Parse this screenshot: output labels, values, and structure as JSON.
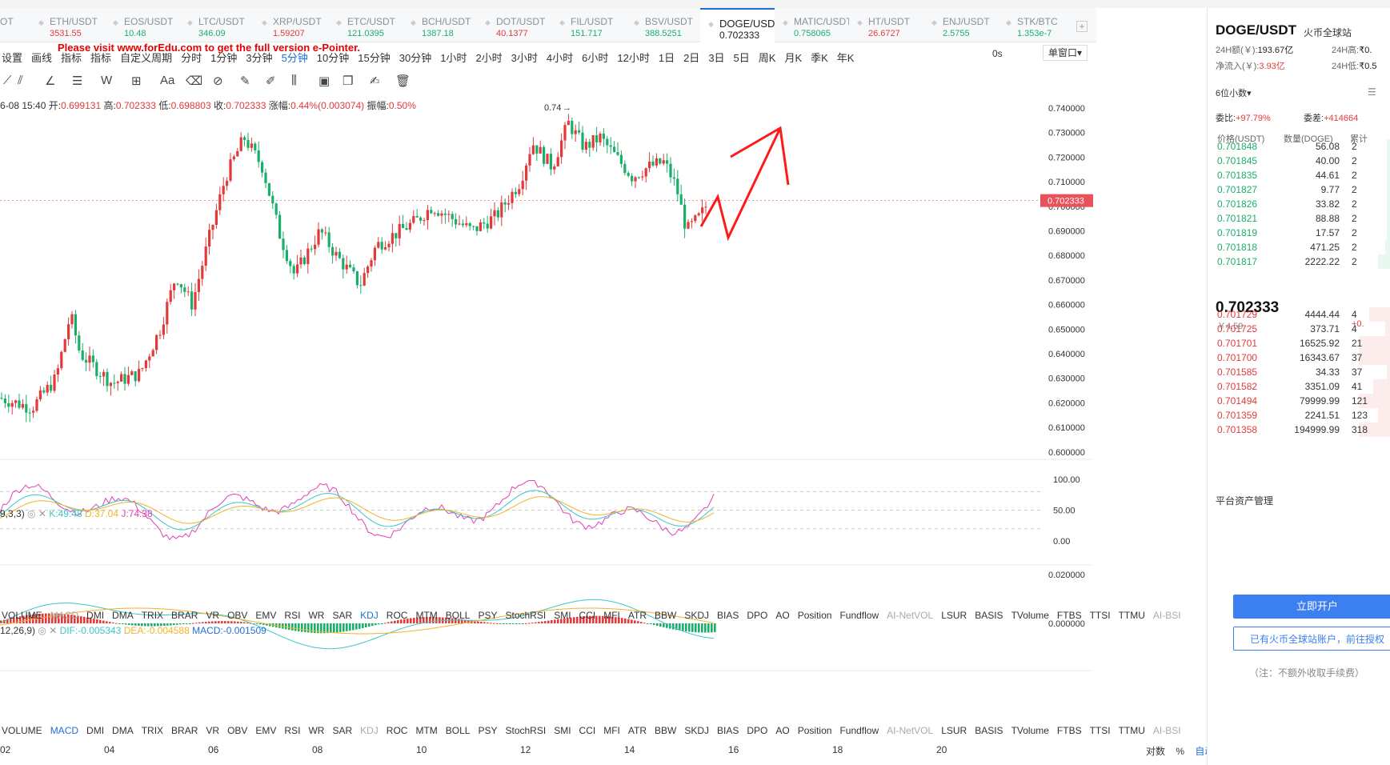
{
  "tabs": [
    {
      "name": "OT",
      "price": "",
      "color": "#e23a3a"
    },
    {
      "name": "ETH/USDT",
      "price": "3531.55",
      "color": "#e23a3a"
    },
    {
      "name": "EOS/USDT",
      "price": "10.48",
      "color": "#1bae6b"
    },
    {
      "name": "LTC/USDT",
      "price": "346.09",
      "color": "#1bae6b"
    },
    {
      "name": "XRP/USDT",
      "price": "1.59207",
      "color": "#e23a3a"
    },
    {
      "name": "ETC/USDT",
      "price": "121.0395",
      "color": "#1bae6b"
    },
    {
      "name": "BCH/USDT",
      "price": "1387.18",
      "color": "#1bae6b"
    },
    {
      "name": "DOT/USDT",
      "price": "40.1377",
      "color": "#e23a3a"
    },
    {
      "name": "FIL/USDT",
      "price": "151.717",
      "color": "#1bae6b"
    },
    {
      "name": "BSV/USDT",
      "price": "388.5251",
      "color": "#1bae6b"
    },
    {
      "name": "DOGE/USDT",
      "price": "0.702333",
      "color": "#222222",
      "active": true
    },
    {
      "name": "MATIC/USDT",
      "price": "0.758065",
      "color": "#1bae6b"
    },
    {
      "name": "HT/USDT",
      "price": "26.6727",
      "color": "#e23a3a"
    },
    {
      "name": "ENJ/USDT",
      "price": "2.5755",
      "color": "#1bae6b"
    },
    {
      "name": "STK/BTC",
      "price": "1.353e-7",
      "color": "#1bae6b"
    }
  ],
  "add_tab": "+",
  "watermark": "Please visit www.forEdu.com to get the full version e-Pointer.",
  "toolbar": [
    "设置",
    "画线",
    "指标",
    "指标",
    "自定义周期",
    "分时",
    "1分钟",
    "3分钟",
    "5分钟",
    "10分钟",
    "15分钟",
    "30分钟",
    "1小时",
    "2小时",
    "3小时",
    "4小时",
    "6小时",
    "12小时",
    "1日",
    "2日",
    "3日",
    "5日",
    "周K",
    "月K",
    "季K",
    "年K"
  ],
  "toolbar_active": "5分钟",
  "toolbar_right": {
    "countdown": "0s",
    "window": "单窗口"
  },
  "ohlc": {
    "time": "6-08 15:40",
    "open_label": "开:",
    "open": "0.699131",
    "high_label": "高:",
    "high": "0.702333",
    "low_label": "低:",
    "low": "0.698803",
    "close_label": "收:",
    "close": "0.702333",
    "chg_label": "涨幅:",
    "chg": "0.44%(0.003074)",
    "amp_label": "振幅:",
    "amp": "0.50%"
  },
  "price_axis": [
    "0.740000",
    "0.730000",
    "0.720000",
    "0.710000",
    "0.700000",
    "0.690000",
    "0.680000",
    "0.670000",
    "0.660000",
    "0.650000",
    "0.640000",
    "0.630000",
    "0.620000",
    "0.610000",
    "0.600000"
  ],
  "current_price_tag": "0.702333",
  "peak_label": "0.74",
  "kdj": {
    "params": "9,3,3)",
    "k_label": "K:",
    "k": "49.48",
    "d_label": "D:",
    "d": "37.04",
    "j_label": "J:",
    "j": "74.38",
    "axis": [
      "100.00",
      "50.00",
      "0.00"
    ]
  },
  "macd": {
    "params": "12,26,9)",
    "dif_label": "DIF:",
    "dif": "-0.005343",
    "dea_label": "DEA:",
    "dea": "-0.004588",
    "macd_label": "MACD:",
    "macd": "-0.001509",
    "axis": [
      "0.020000",
      "0.000000"
    ]
  },
  "indicators": [
    "VOLUME",
    "MACD",
    "DMI",
    "DMA",
    "TRIX",
    "BRAR",
    "VR",
    "OBV",
    "EMV",
    "RSI",
    "WR",
    "SAR",
    "KDJ",
    "ROC",
    "MTM",
    "BOLL",
    "PSY",
    "StochRSI",
    "SMI",
    "CCI",
    "MFI",
    "ATR",
    "BBW",
    "SKDJ",
    "BIAS",
    "DPO",
    "AO",
    "Position",
    "Fundflow",
    "AI-NetVOL",
    "LSUR",
    "BASIS",
    "TVolume",
    "FTBS",
    "TTSI",
    "TTMU",
    "AI-BSI"
  ],
  "x_axis": [
    "02",
    "04",
    "06",
    "08",
    "10",
    "12",
    "14",
    "16",
    "18",
    "20"
  ],
  "bottom_right": {
    "pair": "对数",
    "pct": "%",
    "auto": "自动"
  },
  "colors": {
    "up": "#e23a3a",
    "down": "#1bae6b",
    "accent": "#1e6fd6",
    "k": "#3cc6c6",
    "d": "#f3b22a",
    "j": "#e040b8",
    "dif": "#3cc6c6",
    "dea": "#f3b22a"
  },
  "right_panel": {
    "symbol": "DOGE/USDT",
    "exchange": "火币全球站",
    "vol24_label": "24H额(￥):",
    "vol24": "193.67亿",
    "high24_label": "24H高:",
    "high24": "₹0.",
    "inflow_label": "净流入(￥):",
    "inflow": "3.93亿",
    "low24_label": "24H低:",
    "low24": "₹0.5",
    "decimals": "6位小数",
    "ratio_label": "委比:",
    "ratio": "+97.79%",
    "diff_label": "委差:",
    "diff": "+414664",
    "col_price": "价格(USDT)",
    "col_qty": "数量(DOGE)",
    "col_cum": "累计",
    "bids": [
      {
        "p": "0.701848",
        "q": "56.08",
        "c": "2"
      },
      {
        "p": "0.701845",
        "q": "40.00",
        "c": "2"
      },
      {
        "p": "0.701835",
        "q": "44.61",
        "c": "2"
      },
      {
        "p": "0.701827",
        "q": "9.77",
        "c": "2"
      },
      {
        "p": "0.701826",
        "q": "33.82",
        "c": "2"
      },
      {
        "p": "0.701821",
        "q": "88.88",
        "c": "2"
      },
      {
        "p": "0.701819",
        "q": "17.57",
        "c": "2"
      },
      {
        "p": "0.701818",
        "q": "471.25",
        "c": "2"
      },
      {
        "p": "0.701817",
        "q": "2222.22",
        "c": "2"
      }
    ],
    "last": "0.702333",
    "last_cny": "￥4.59",
    "last_chg": "+0.",
    "asks": [
      {
        "p": "0.701729",
        "q": "4444.44",
        "c": "4"
      },
      {
        "p": "0.701725",
        "q": "373.71",
        "c": "4"
      },
      {
        "p": "0.701701",
        "q": "16525.92",
        "c": "21"
      },
      {
        "p": "0.701700",
        "q": "16343.67",
        "c": "37"
      },
      {
        "p": "0.701585",
        "q": "34.33",
        "c": "37"
      },
      {
        "p": "0.701582",
        "q": "3351.09",
        "c": "41"
      },
      {
        "p": "0.701494",
        "q": "79999.99",
        "c": "121"
      },
      {
        "p": "0.701359",
        "q": "2241.51",
        "c": "123"
      },
      {
        "p": "0.701358",
        "q": "194999.99",
        "c": "318"
      }
    ],
    "asset_mgmt": "平台资产管理",
    "open_btn": "立即开户",
    "login_btn": "已有火币全球站账户，前往授权",
    "note": "（注：不额外收取手续费）"
  }
}
